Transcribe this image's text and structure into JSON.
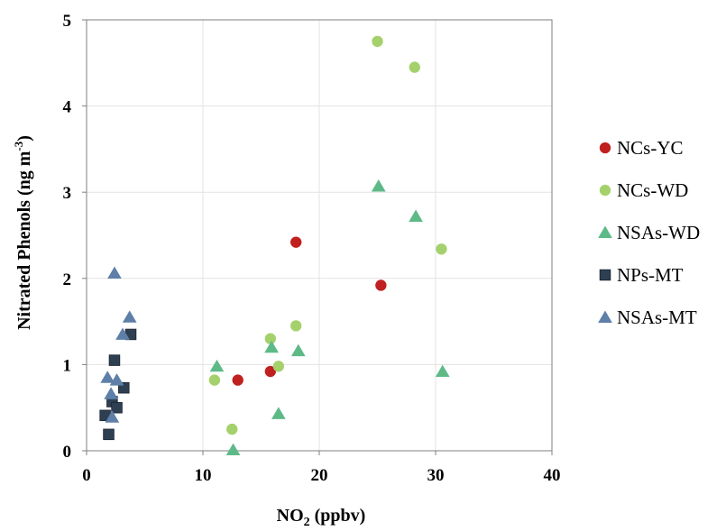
{
  "chart_data": {
    "type": "scatter",
    "xlabel": {
      "main": "NO",
      "sub": "2",
      "rest": " (ppbv)"
    },
    "ylabel": {
      "main": "Nitrated Phenols  (ng m",
      "sup": "-3",
      "rest": ")"
    },
    "xlim": [
      0,
      40
    ],
    "ylim": [
      0,
      5
    ],
    "x_ticks": [
      "0",
      "10",
      "20",
      "30",
      "40"
    ],
    "y_ticks": [
      "0",
      "1",
      "2",
      "3",
      "4",
      "5"
    ],
    "grid": true,
    "legend_position": "right",
    "series": [
      {
        "name": "NCs-YC",
        "marker": "circle",
        "color": "#c0201f",
        "points": [
          [
            13.0,
            0.82
          ],
          [
            15.8,
            0.92
          ],
          [
            18.0,
            2.42
          ],
          [
            25.3,
            1.92
          ]
        ]
      },
      {
        "name": "NCs-WD",
        "marker": "circle",
        "color": "#a4d16b",
        "points": [
          [
            11.0,
            0.82
          ],
          [
            12.5,
            0.25
          ],
          [
            15.8,
            1.3
          ],
          [
            16.5,
            0.98
          ],
          [
            18.0,
            1.45
          ],
          [
            25.0,
            4.75
          ],
          [
            28.2,
            4.45
          ],
          [
            30.5,
            2.34
          ]
        ]
      },
      {
        "name": "NSAs-WD",
        "marker": "triangle",
        "color": "#5dba87",
        "points": [
          [
            11.2,
            0.98
          ],
          [
            12.6,
            0.01
          ],
          [
            15.9,
            1.2
          ],
          [
            16.5,
            0.43
          ],
          [
            18.2,
            1.16
          ],
          [
            25.1,
            3.07
          ],
          [
            28.3,
            2.72
          ],
          [
            30.6,
            0.92
          ]
        ]
      },
      {
        "name": "NPs-MT",
        "marker": "square",
        "color": "#2e3f52",
        "points": [
          [
            1.6,
            0.41
          ],
          [
            1.9,
            0.19
          ],
          [
            2.2,
            0.57
          ],
          [
            2.4,
            1.05
          ],
          [
            2.6,
            0.5
          ],
          [
            3.2,
            0.73
          ],
          [
            3.8,
            1.35
          ]
        ]
      },
      {
        "name": "NSAs-MT",
        "marker": "triangle",
        "color": "#5e7fa8",
        "points": [
          [
            1.8,
            0.85
          ],
          [
            2.1,
            0.66
          ],
          [
            2.2,
            0.39
          ],
          [
            2.4,
            2.06
          ],
          [
            2.6,
            0.82
          ],
          [
            3.1,
            1.35
          ],
          [
            3.7,
            1.55
          ]
        ]
      }
    ]
  }
}
